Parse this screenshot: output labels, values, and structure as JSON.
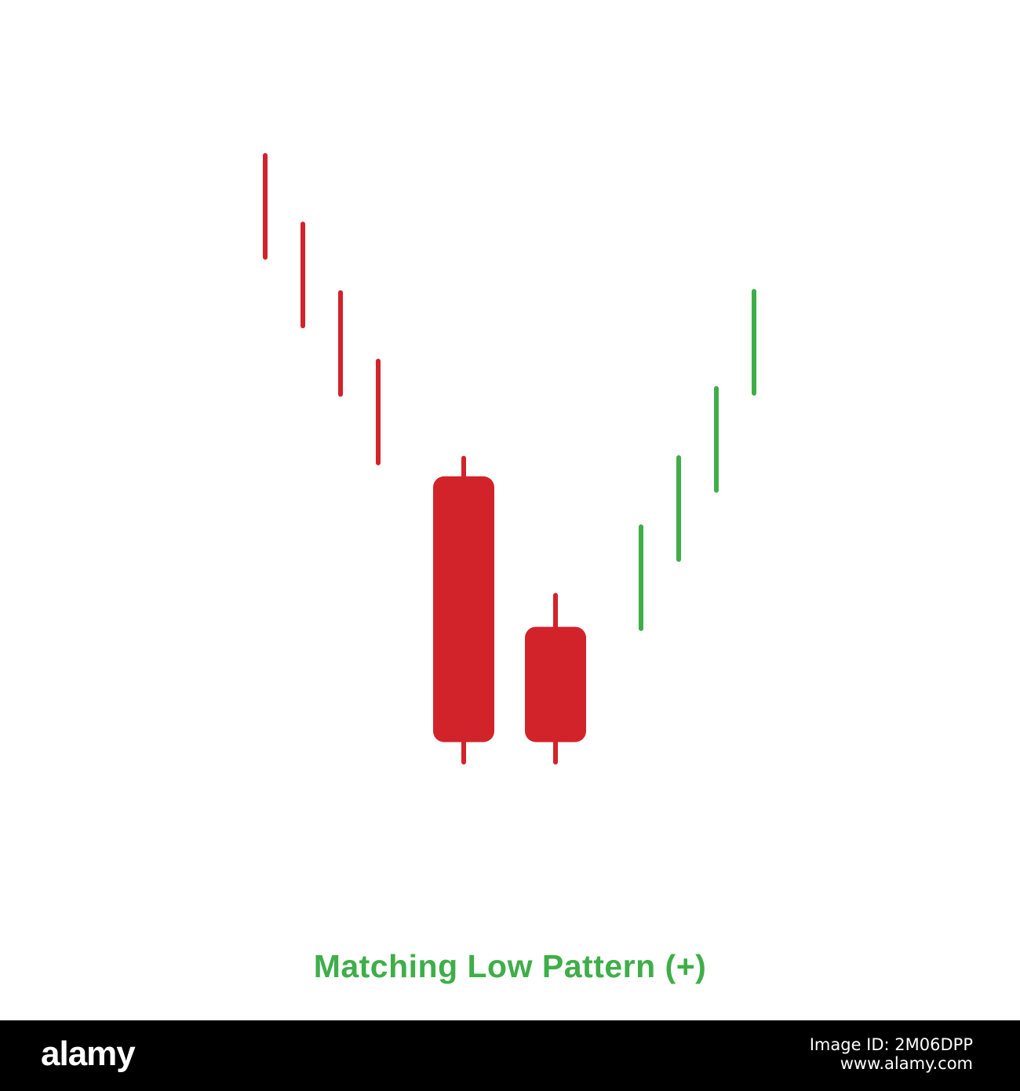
{
  "colors": {
    "bearish": "#d2232a",
    "bullish": "#3fae49",
    "background": "#ffffff",
    "footer": "#000000",
    "footer_text": "#ffffff"
  },
  "chart_data": {
    "type": "candlestick",
    "title": "Matching Low Pattern (+)",
    "xlabel": "",
    "ylabel": "",
    "grid": false,
    "ylim": [
      0,
      100
    ],
    "candles": [
      {
        "name": "trend-down-1",
        "kind": "line",
        "trend": "bearish",
        "high": 100,
        "low": 83.2
      },
      {
        "name": "trend-down-2",
        "kind": "line",
        "trend": "bearish",
        "high": 88.7,
        "low": 71.9
      },
      {
        "name": "trend-down-3",
        "kind": "line",
        "trend": "bearish",
        "high": 77.4,
        "low": 60.6
      },
      {
        "name": "trend-down-4",
        "kind": "line",
        "trend": "bearish",
        "high": 66.1,
        "low": 49.3
      },
      {
        "name": "pattern-candle-1",
        "kind": "candle",
        "trend": "bearish",
        "open": 47.1,
        "close": 3.3,
        "high": 50.1,
        "low": 0
      },
      {
        "name": "pattern-candle-2",
        "kind": "candle",
        "trend": "bearish",
        "open": 22.3,
        "close": 3.3,
        "high": 27.5,
        "low": 0
      },
      {
        "name": "trend-up-1",
        "kind": "line",
        "trend": "bullish",
        "high": 38.8,
        "low": 22.0
      },
      {
        "name": "trend-up-2",
        "kind": "line",
        "trend": "bullish",
        "high": 50.2,
        "low": 33.4
      },
      {
        "name": "trend-up-3",
        "kind": "line",
        "trend": "bullish",
        "high": 61.6,
        "low": 44.8
      },
      {
        "name": "trend-up-4",
        "kind": "line",
        "trend": "bullish",
        "high": 77.6,
        "low": 60.8
      }
    ]
  },
  "footer": {
    "brand": "alamy",
    "image_id_lines": [
      "Image ID: 2M06DPP",
      "www.alamy.com"
    ]
  }
}
